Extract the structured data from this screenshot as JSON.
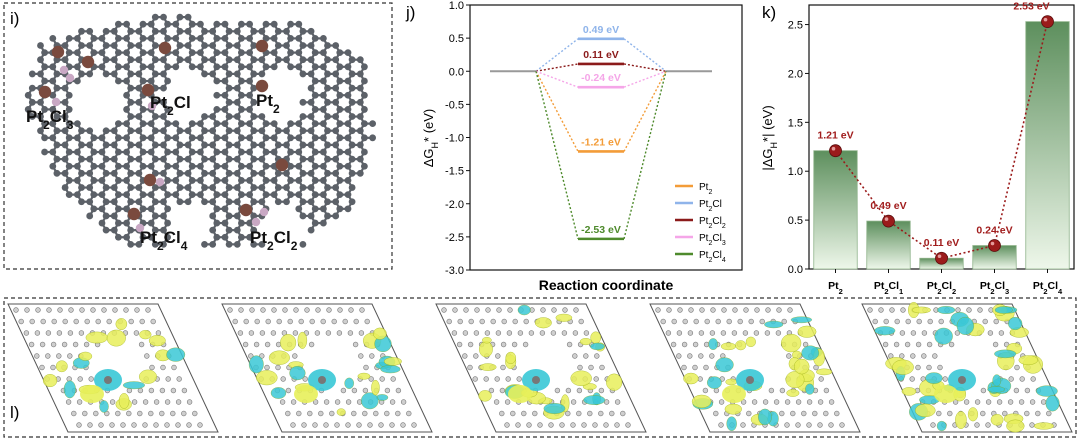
{
  "panels": {
    "i": {
      "label": "i)",
      "sites": [
        {
          "label": "Pt₂Cl₃"
        },
        {
          "label": "Pt₂Cl"
        },
        {
          "label": "Pt₂"
        },
        {
          "label": "Pt₂Cl₄"
        },
        {
          "label": "Pt₂Cl₂"
        }
      ]
    },
    "j": {
      "label": "j)"
    },
    "k": {
      "label": "k)"
    },
    "l": {
      "label": "l)",
      "image_count": 5
    }
  },
  "colors": {
    "Pt2": "#f39c38",
    "Pt2Cl": "#8fb4ea",
    "Pt2Cl2": "#8b1a1a",
    "Pt2Cl3": "#f5a6e8",
    "Pt2Cl4": "#4e8a2c",
    "bar_top": "#5d8f5d",
    "bar_bottom": "#eef7ea",
    "marker": "#9b1b1b",
    "label_red": "#a11d1d",
    "carbon": "#5c6168",
    "pt_atom": "#7a4a3e",
    "cl_atom": "#c9a8c4",
    "cdd_yellow": "#e7ef5a",
    "cdd_cyan": "#39c8d6"
  },
  "chart_data": [
    {
      "panel": "j",
      "type": "line",
      "ylabel": "ΔGₕ* (eV)",
      "xlabel": "Reaction coordinate",
      "ylim": [
        -3.0,
        1.0
      ],
      "yticks": [
        "1.0",
        "0.5",
        "0.0",
        "-0.5",
        "-1.0",
        "-1.5",
        "-2.0",
        "-2.5",
        "-3.0"
      ],
      "initial_level": 0.0,
      "final_level": 0.0,
      "series": [
        {
          "name": "Pt₂",
          "key": "Pt2",
          "value": -1.21,
          "label": "-1.21 eV"
        },
        {
          "name": "Pt₂Cl",
          "key": "Pt2Cl",
          "value": 0.49,
          "label": "0.49 eV"
        },
        {
          "name": "Pt₂Cl₂",
          "key": "Pt2Cl2",
          "value": 0.11,
          "label": "0.11 eV"
        },
        {
          "name": "Pt₂Cl₃",
          "key": "Pt2Cl3",
          "value": -0.24,
          "label": "-0.24 eV"
        },
        {
          "name": "Pt₂Cl₄",
          "key": "Pt2Cl4",
          "value": -2.53,
          "label": "-2.53 eV"
        }
      ],
      "legend": "bottom-right"
    },
    {
      "panel": "k",
      "type": "bar",
      "ylabel": "|ΔGₕ*| (eV)",
      "ylim": [
        0.0,
        2.7
      ],
      "yticks": [
        "0.0",
        "0.5",
        "1.0",
        "1.5",
        "2.0",
        "2.5"
      ],
      "categories": [
        "Pt₂",
        "Pt₂Cl₁",
        "Pt₂Cl₂",
        "Pt₂Cl₃",
        "Pt₂Cl₄"
      ],
      "values": [
        1.21,
        0.49,
        0.11,
        0.24,
        2.53
      ],
      "labels": [
        "1.21 eV",
        "0.49 eV",
        "0.11 eV",
        "0.24 eV",
        "2.53 eV"
      ]
    }
  ]
}
